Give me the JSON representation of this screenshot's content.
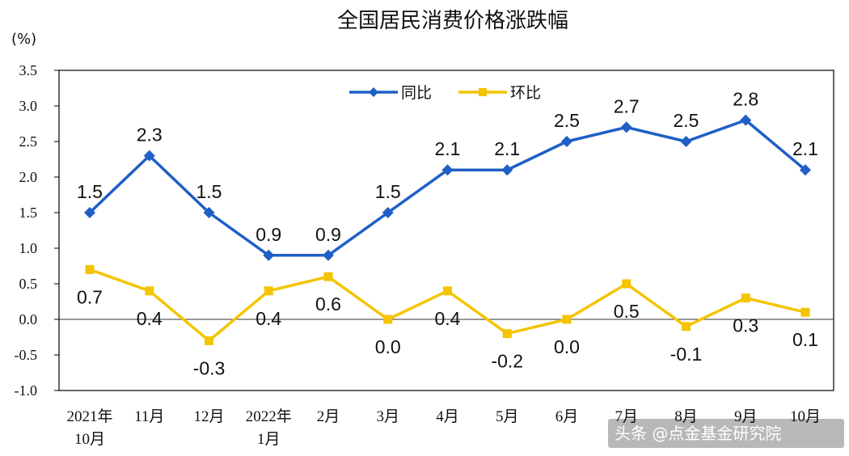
{
  "chart_data": {
    "type": "line",
    "title": "全国居民消费价格涨跌幅",
    "unit_label": "(%)",
    "categories": [
      [
        "2021年",
        "10月"
      ],
      [
        "11月"
      ],
      [
        "12月"
      ],
      [
        "2022年",
        "1月"
      ],
      [
        "2月"
      ],
      [
        "3月"
      ],
      [
        "4月"
      ],
      [
        "5月"
      ],
      [
        "6月"
      ],
      [
        "7月"
      ],
      [
        "8月"
      ],
      [
        "9月"
      ],
      [
        "10月"
      ]
    ],
    "series": [
      {
        "name": "同比",
        "color": "#1f5fc6",
        "marker": "diamond",
        "values": [
          1.5,
          2.3,
          1.5,
          0.9,
          0.9,
          1.5,
          2.1,
          2.1,
          2.5,
          2.7,
          2.5,
          2.8,
          2.1
        ],
        "labels": [
          "1.5",
          "2.3",
          "1.5",
          "0.9",
          "0.9",
          "1.5",
          "2.1",
          "2.1",
          "2.5",
          "2.7",
          "2.5",
          "2.8",
          "2.1"
        ]
      },
      {
        "name": "环比",
        "color": "#f5c400",
        "marker": "square",
        "values": [
          0.7,
          0.4,
          -0.3,
          0.4,
          0.6,
          0.0,
          0.4,
          -0.2,
          0.0,
          0.5,
          -0.1,
          0.3,
          0.1
        ],
        "labels": [
          "0.7",
          "0.4",
          "-0.3",
          "0.4",
          "0.6",
          "0.0",
          "0.4",
          "-0.2",
          "0.0",
          "0.5",
          "-0.1",
          "0.3",
          "0.1"
        ]
      }
    ],
    "yticks": [
      "3.5",
      "3.0",
      "2.5",
      "2.0",
      "1.5",
      "1.0",
      "0.5",
      "0.0",
      "-0.5",
      "-1.0"
    ],
    "ylim": [
      -1.0,
      3.5
    ],
    "grid": false,
    "legend_position": "top-center"
  },
  "watermark": "头条 @点金基金研究院"
}
